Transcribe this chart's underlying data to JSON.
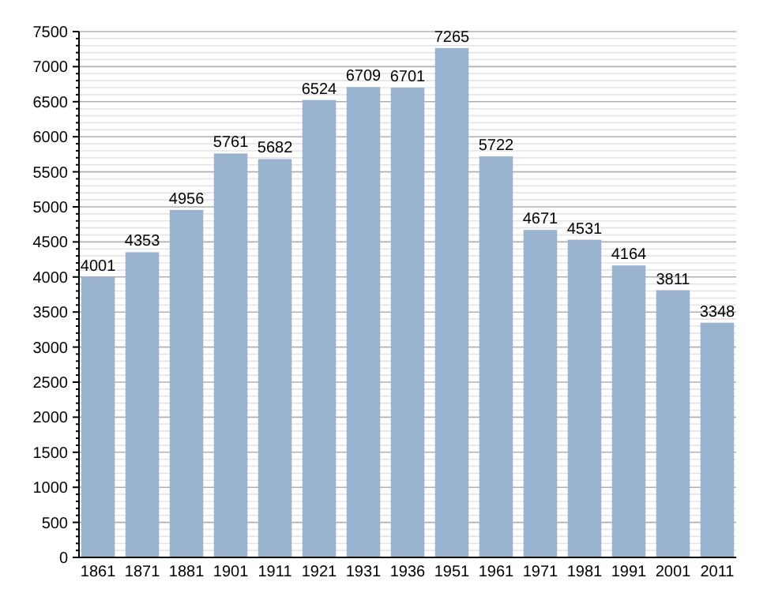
{
  "chart_data": {
    "type": "bar",
    "categories": [
      "1861",
      "1871",
      "1881",
      "1901",
      "1911",
      "1921",
      "1931",
      "1936",
      "1951",
      "1961",
      "1971",
      "1981",
      "1991",
      "2001",
      "2011"
    ],
    "values": [
      4001,
      4353,
      4956,
      5761,
      5682,
      6524,
      6709,
      6701,
      7265,
      5722,
      4671,
      4531,
      4164,
      3811,
      3348
    ],
    "color": "#9ab3cf",
    "ylim": [
      0,
      7500
    ],
    "yticks": [
      0,
      500,
      1000,
      1500,
      2000,
      2500,
      3000,
      3500,
      4000,
      4500,
      5000,
      5500,
      6000,
      6500,
      7000,
      7500
    ],
    "grid": "y",
    "data_labels": true
  }
}
